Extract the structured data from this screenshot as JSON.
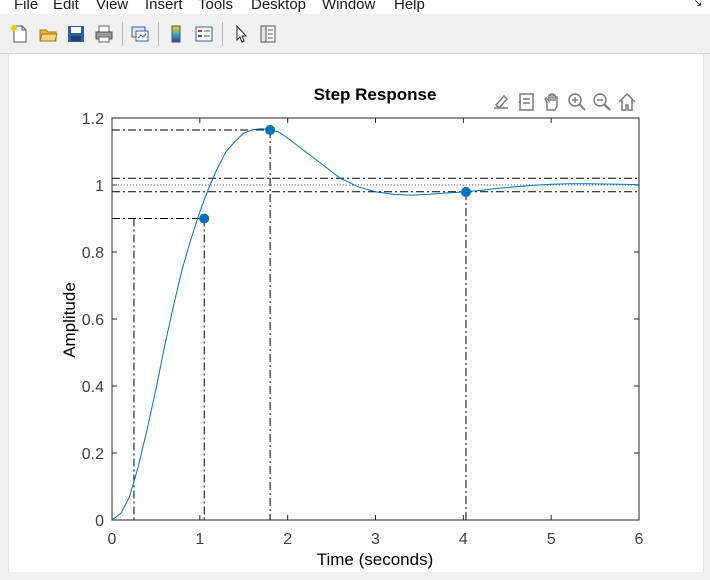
{
  "menu": {
    "items": [
      {
        "label": "File"
      },
      {
        "label": "Edit"
      },
      {
        "label": "View"
      },
      {
        "label": "Insert"
      },
      {
        "label": "Tools"
      },
      {
        "label": "Desktop"
      },
      {
        "label": "Window"
      },
      {
        "label": "Help"
      }
    ],
    "corner_icon": "undock-arrow-icon"
  },
  "toolbar": {
    "buttons": [
      {
        "icon": "new-figure-icon"
      },
      {
        "icon": "open-file-icon"
      },
      {
        "icon": "save-icon"
      },
      {
        "icon": "print-icon"
      },
      {
        "icon": "link-plot-icon"
      },
      {
        "icon": "insert-colorbar-icon"
      },
      {
        "icon": "insert-legend-icon"
      },
      {
        "icon": "edit-plot-icon"
      },
      {
        "icon": "property-inspector-icon"
      }
    ]
  },
  "axes_toolbar": [
    "brush-icon",
    "data-tips-icon",
    "pan-icon",
    "zoom-in-icon",
    "zoom-out-icon",
    "home-icon"
  ],
  "colors": {
    "series": "#0072bd",
    "marker": "#0072bd",
    "axis": "#262626",
    "grid_lines": "#000000"
  },
  "chart_data": {
    "type": "line",
    "title": "Step Response",
    "xlabel": "Time (seconds)",
    "ylabel": "Amplitude",
    "xlim": [
      0,
      6
    ],
    "ylim": [
      0,
      1.2
    ],
    "xticks": [
      "0",
      "1",
      "2",
      "3",
      "4",
      "5",
      "6"
    ],
    "yticks": [
      "0",
      "0.2",
      "0.4",
      "0.6",
      "0.8",
      "1",
      "1.2"
    ],
    "grid": false,
    "series": [
      {
        "x": [
          0,
          0.1,
          0.2,
          0.3,
          0.4,
          0.5,
          0.6,
          0.7,
          0.8,
          0.9,
          1.0,
          1.1,
          1.2,
          1.3,
          1.4,
          1.5,
          1.6,
          1.7,
          1.8,
          1.9,
          2.0,
          2.2,
          2.4,
          2.6,
          2.8,
          3.0,
          3.2,
          3.4,
          3.6,
          3.8,
          4.0,
          4.2,
          4.4,
          4.6,
          4.8,
          5.0,
          5.2,
          5.4,
          5.6,
          5.8,
          6.0
        ],
        "y": [
          0,
          0.02,
          0.07,
          0.16,
          0.27,
          0.39,
          0.52,
          0.64,
          0.75,
          0.84,
          0.92,
          0.99,
          1.05,
          1.1,
          1.13,
          1.155,
          1.165,
          1.168,
          1.165,
          1.158,
          1.14,
          1.1,
          1.06,
          1.02,
          0.995,
          0.98,
          0.972,
          0.97,
          0.972,
          0.976,
          0.979,
          0.984,
          0.99,
          0.995,
          0.999,
          1.002,
          1.004,
          1.004,
          1.003,
          1.002,
          1.001
        ]
      }
    ],
    "markers": [
      {
        "x": 1.05,
        "y": 0.9
      },
      {
        "x": 1.8,
        "y": 1.164
      },
      {
        "x": 4.03,
        "y": 0.979
      }
    ],
    "rise_time_start": 0.25,
    "steady_state": 1.0,
    "settling_band": [
      0.98,
      1.02
    ]
  }
}
